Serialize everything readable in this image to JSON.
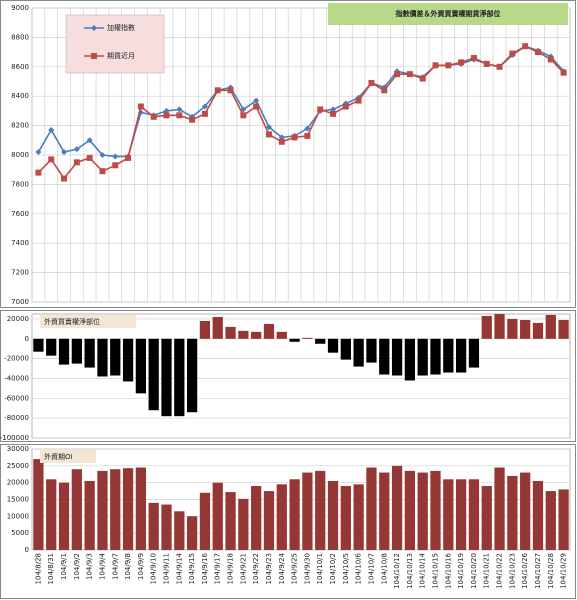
{
  "chart_data": [
    {
      "type": "line",
      "title": "指數價差＆外資買賣權期貨淨部位",
      "ylim": [
        7000,
        9000
      ],
      "yticks": [
        7000,
        7200,
        7400,
        7600,
        7800,
        8000,
        8200,
        8400,
        8600,
        8800,
        9000
      ],
      "grid": true,
      "legend": "upper-left",
      "series": [
        {
          "name": "加權指數",
          "color": "#4a7ebb",
          "marker": "diamond",
          "values": [
            8020,
            8170,
            8020,
            8040,
            8100,
            8000,
            7990,
            7990,
            8290,
            8270,
            8300,
            8310,
            8260,
            8330,
            8440,
            8460,
            8310,
            8370,
            8190,
            8120,
            8130,
            8180,
            8300,
            8310,
            8350,
            8390,
            8490,
            8460,
            8570,
            8550,
            8530,
            8610,
            8610,
            8620,
            8650,
            8620,
            8600,
            8680,
            8740,
            8710,
            8670,
            8570
          ]
        },
        {
          "name": "期貨近月",
          "color": "#be4b48",
          "marker": "square",
          "values": [
            7880,
            7970,
            7840,
            7950,
            7980,
            7890,
            7930,
            7980,
            8330,
            8260,
            8270,
            8270,
            8240,
            8280,
            8440,
            8440,
            8270,
            8330,
            8140,
            8090,
            8120,
            8130,
            8310,
            8280,
            8330,
            8370,
            8490,
            8440,
            8550,
            8550,
            8520,
            8610,
            8610,
            8630,
            8660,
            8620,
            8600,
            8690,
            8740,
            8700,
            8650,
            8560
          ]
        }
      ]
    },
    {
      "type": "bar",
      "title": "外資買賣權淨部位",
      "ylim": [
        -100000,
        25000
      ],
      "yticks": [
        -100000,
        -80000,
        -60000,
        -40000,
        -20000,
        0,
        20000
      ],
      "grid": true,
      "color": "#953735",
      "negative_color": "#000000",
      "values": [
        -13000,
        -17000,
        -26000,
        -25000,
        -29000,
        -38000,
        -37000,
        -43000,
        -55000,
        -72000,
        -78000,
        -78000,
        -74000,
        18000,
        22000,
        12000,
        8000,
        7000,
        15000,
        7000,
        -3000,
        1000,
        -5000,
        -14000,
        -21000,
        -28000,
        -24000,
        -36000,
        -37000,
        -42000,
        -37000,
        -36000,
        -34000,
        -34000,
        -29000,
        23000,
        25000,
        20000,
        19000,
        16000,
        24000,
        19000
      ]
    },
    {
      "type": "bar",
      "title": "外資期OI",
      "ylim": [
        0,
        30000
      ],
      "yticks": [
        0,
        5000,
        10000,
        15000,
        20000,
        25000,
        30000
      ],
      "grid": true,
      "color": "#953735",
      "categories": [
        "104/8/28",
        "104/8/31",
        "104/9/1",
        "104/9/2",
        "104/9/3",
        "104/9/4",
        "104/9/7",
        "104/9/8",
        "104/9/9",
        "104/9/10",
        "104/9/11",
        "104/9/14",
        "104/9/15",
        "104/9/16",
        "104/9/17",
        "104/9/18",
        "104/9/21",
        "104/9/22",
        "104/9/23",
        "104/9/24",
        "104/9/25",
        "104/9/30",
        "104/10/1",
        "104/10/2",
        "104/10/5",
        "104/10/6",
        "104/10/7",
        "104/10/8",
        "104/10/12",
        "104/10/13",
        "104/10/14",
        "104/10/15",
        "104/10/16",
        "104/10/19",
        "104/10/20",
        "104/10/21",
        "104/10/22",
        "104/10/23",
        "104/10/26",
        "104/10/27",
        "104/10/28",
        "104/10/29"
      ],
      "values": [
        27000,
        21000,
        20000,
        24000,
        20500,
        23500,
        24000,
        24300,
        24500,
        14000,
        13500,
        11500,
        10000,
        17000,
        20000,
        17200,
        15200,
        19000,
        17500,
        19500,
        21000,
        23000,
        23500,
        20500,
        19000,
        19500,
        24500,
        23000,
        25000,
        23500,
        23000,
        23500,
        21000,
        21000,
        21000,
        19000,
        24500,
        22000,
        23000,
        20500,
        17500,
        18000
      ]
    }
  ]
}
